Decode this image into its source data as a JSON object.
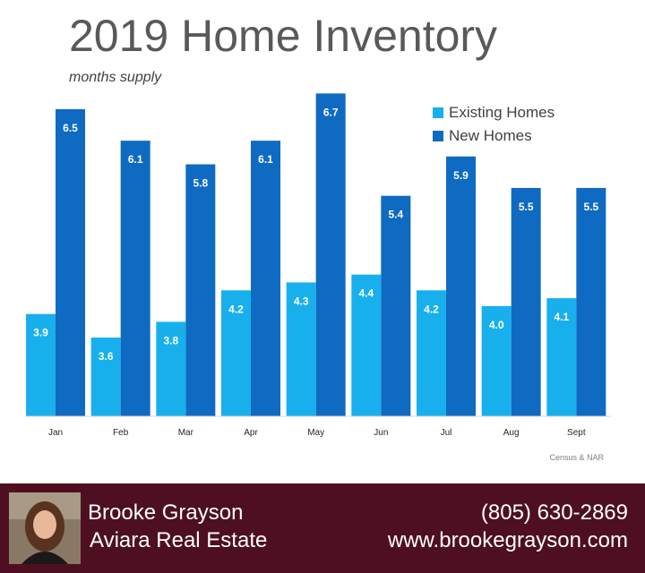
{
  "chart_data": {
    "type": "bar",
    "title": "2019 Home Inventory",
    "subtitle": "months supply",
    "categories": [
      "Jan",
      "Feb",
      "Mar",
      "Apr",
      "May",
      "Jun",
      "Jul",
      "Aug",
      "Sept"
    ],
    "series": [
      {
        "name": "Existing Homes",
        "color": "#18b0ec",
        "values": [
          3.9,
          3.6,
          3.8,
          4.2,
          4.3,
          4.4,
          4.2,
          4.0,
          4.1
        ]
      },
      {
        "name": "New Homes",
        "color": "#0f6ac2",
        "values": [
          6.5,
          6.1,
          5.8,
          6.1,
          6.7,
          5.4,
          5.9,
          5.5,
          5.5
        ]
      }
    ],
    "ylim": [
      2.6,
      7.0
    ],
    "grid": false,
    "legend": "top-right",
    "source": "Census & NAR"
  },
  "footer": {
    "name": "Brooke Grayson",
    "company": "Aviara Real Estate",
    "phone": "(805) 630-2869",
    "website": "www.brookegrayson.com"
  }
}
